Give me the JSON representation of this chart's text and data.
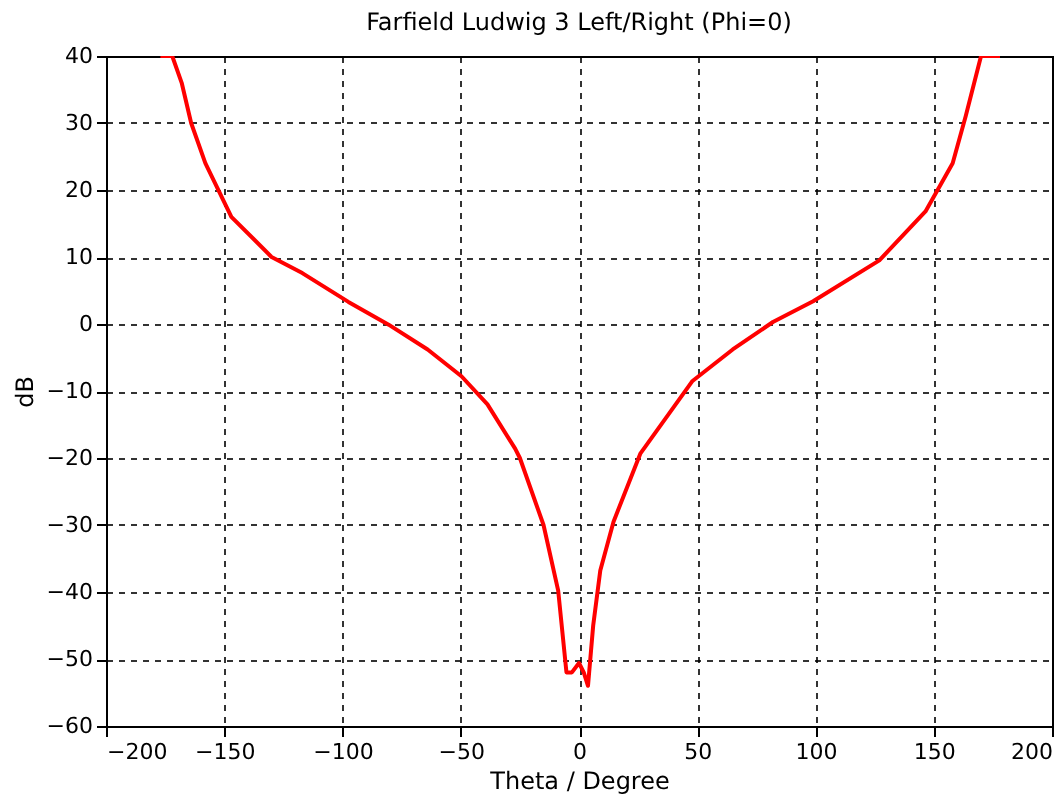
{
  "chart_data": {
    "type": "line",
    "title": "Farfield  Ludwig 3 Left/Right (Phi=0)",
    "xlabel": "Theta / Degree",
    "ylabel": "dB",
    "xlim": [
      -200,
      200
    ],
    "xticks": [
      -200,
      -150,
      -100,
      -50,
      0,
      50,
      100,
      150,
      200
    ],
    "ylim": [
      -60,
      40
    ],
    "yticks": [
      -60,
      -50,
      -40,
      -30,
      -20,
      -10,
      0,
      10,
      20,
      30,
      40
    ],
    "grid": true,
    "line_style": "solid",
    "marker": "none",
    "series": [
      {
        "color": "#ff0000",
        "x": [
          -177,
          -172,
          -168,
          -164,
          -158,
          -147,
          -130,
          -117,
          -97.5,
          -80.5,
          -64,
          -49.7,
          -38.7,
          -27,
          -25,
          -15,
          -8.8,
          -5.3,
          -3,
          0,
          2,
          3.8,
          6,
          9,
          14.6,
          26,
          48,
          65,
          82,
          99,
          127,
          146.5,
          158,
          163.5,
          170,
          178
        ],
        "values": [
          40,
          40,
          36,
          30,
          24,
          16,
          10,
          7.6,
          3.3,
          -0.1,
          -3.8,
          -7.8,
          -12,
          -18.6,
          -20,
          -30,
          -39.8,
          -52,
          -52,
          -50.6,
          -52,
          -54,
          -45,
          -36.8,
          -29.5,
          -19.3,
          -8.5,
          -3.8,
          0.3,
          3.4,
          9.5,
          16.8,
          24,
          31,
          40,
          40
        ]
      }
    ]
  }
}
